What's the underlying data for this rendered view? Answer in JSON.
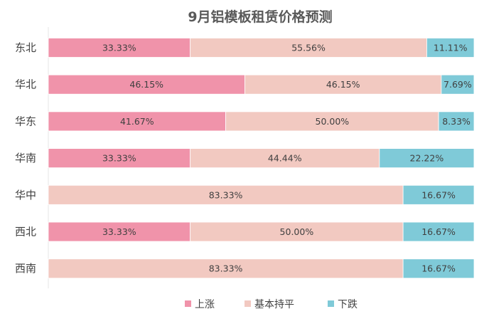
{
  "chart_data": {
    "type": "bar",
    "orientation": "horizontal",
    "stacked": "percent",
    "title": "9月铝模板租赁价格预测",
    "categories": [
      "东北",
      "华北",
      "华东",
      "华南",
      "华中",
      "西北",
      "西南"
    ],
    "series": [
      {
        "name": "上涨",
        "color": "#F093AA",
        "values": [
          33.33,
          46.15,
          41.67,
          33.33,
          0,
          33.33,
          0
        ],
        "labels": [
          "33.33%",
          "46.15%",
          "41.67%",
          "33.33%",
          "",
          "33.33%",
          ""
        ]
      },
      {
        "name": "基本持平",
        "color": "#F2C9C1",
        "values": [
          55.56,
          46.15,
          50.0,
          44.44,
          83.33,
          50.0,
          83.33
        ],
        "labels": [
          "55.56%",
          "46.15%",
          "50.00%",
          "44.44%",
          "83.33%",
          "50.00%",
          "83.33%"
        ]
      },
      {
        "name": "下跌",
        "color": "#7FCAD8",
        "values": [
          11.11,
          7.69,
          8.33,
          22.22,
          16.67,
          16.67,
          16.67
        ],
        "labels": [
          "11.11%",
          "7.69%",
          "8.33%",
          "22.22%",
          "16.67%",
          "16.67%",
          "16.67%"
        ]
      }
    ],
    "xlim": [
      0,
      100
    ],
    "grid": false,
    "legend_position": "bottom"
  }
}
